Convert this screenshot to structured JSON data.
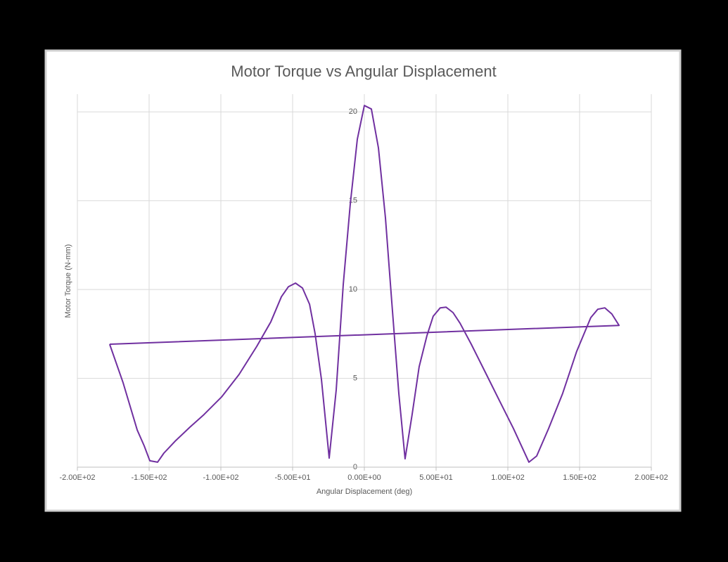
{
  "chart_data": {
    "type": "line",
    "title": "Motor Torque vs Angular Displacement",
    "x_label": "Angular Displacement (deg)",
    "y_label": "Motor Torque (N-mm)",
    "color": "#7030a0",
    "grid": true,
    "x": [
      -177.5,
      -168.1,
      -158.3,
      -153.4,
      -149.5,
      -144.1,
      -139.7,
      -131.4,
      -121.6,
      -111.8,
      -99.5,
      -87.3,
      -75.0,
      -65.2,
      -57.8,
      -52.9,
      -48.0,
      -43.1,
      -38.2,
      -34.3,
      -29.9,
      -24.5,
      -19.6,
      -14.7,
      -9.8,
      -4.9,
      0,
      4.9,
      9.8,
      14.7,
      19.1,
      24.0,
      28.4,
      33.3,
      38.2,
      43.6,
      48.0,
      52.9,
      56.9,
      61.8,
      66.7,
      74.5,
      84.3,
      94.1,
      103.9,
      114.7,
      120.1,
      128.4,
      138.2,
      148.0,
      157.8,
      162.7,
      167.6,
      172.5,
      177.5,
      -177.5
    ],
    "values": [
      6.92,
      4.74,
      2.09,
      1.19,
      0.36,
      0.28,
      0.79,
      1.5,
      2.25,
      2.96,
      3.95,
      5.22,
      6.8,
      8.18,
      9.6,
      10.16,
      10.36,
      10.08,
      9.17,
      7.51,
      4.94,
      0.51,
      4.35,
      10.28,
      14.82,
      18.46,
      20.36,
      20.16,
      17.98,
      14.03,
      9.29,
      4.15,
      0.47,
      2.96,
      5.65,
      7.39,
      8.5,
      8.97,
      9.01,
      8.7,
      8.1,
      6.92,
      5.34,
      3.75,
      2.17,
      0.28,
      0.63,
      2.17,
      4.15,
      6.52,
      8.42,
      8.89,
      8.97,
      8.62,
      7.98,
      6.92
    ],
    "xlim": [
      -200,
      200
    ],
    "xticks": [
      {
        "value": -200,
        "label": "-2.00E+02"
      },
      {
        "value": -150,
        "label": "-1.50E+02"
      },
      {
        "value": -100,
        "label": "-1.00E+02"
      },
      {
        "value": -50,
        "label": "-5.00E+01"
      },
      {
        "value": 0,
        "label": "0.00E+00"
      },
      {
        "value": 50,
        "label": "5.00E+01"
      },
      {
        "value": 100,
        "label": "1.00E+02"
      },
      {
        "value": 150,
        "label": "1.50E+02"
      },
      {
        "value": 200,
        "label": "2.00E+02"
      }
    ],
    "ylim": [
      0,
      21
    ],
    "yticks": [
      0,
      5,
      10,
      15,
      20
    ]
  }
}
